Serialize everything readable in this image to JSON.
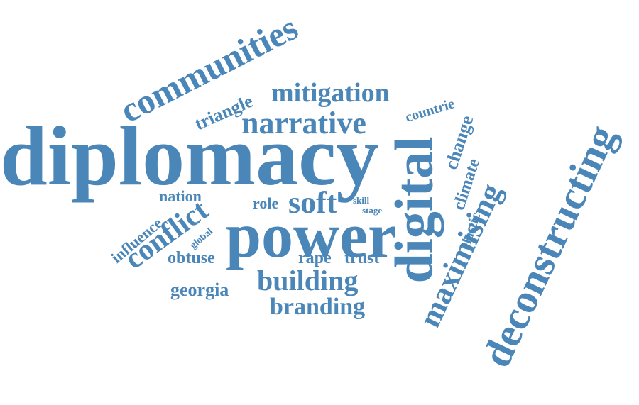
{
  "wordcloud": {
    "color": "#4a86b8",
    "words": {
      "diplomacy": "diplomacy",
      "power": "power",
      "digital": "digital",
      "deconstructing": "deconstructing",
      "communities": "communities",
      "narrative": "narrative",
      "mitigation": "mitigation",
      "maximising": "maximising",
      "building": "building",
      "branding": "branding",
      "conflict": "conflict",
      "soft": "soft",
      "triangle": "triangle",
      "georgia": "georgia",
      "obtuse": "obtuse",
      "influence": "influence",
      "nation": "nation",
      "role": "role",
      "rape": "rape",
      "trust": "trust",
      "change": "change",
      "climate": "climate",
      "elastic": "elastic",
      "countrie": "countrie",
      "global": "global",
      "skill": "skill",
      "stage": "stage"
    }
  }
}
